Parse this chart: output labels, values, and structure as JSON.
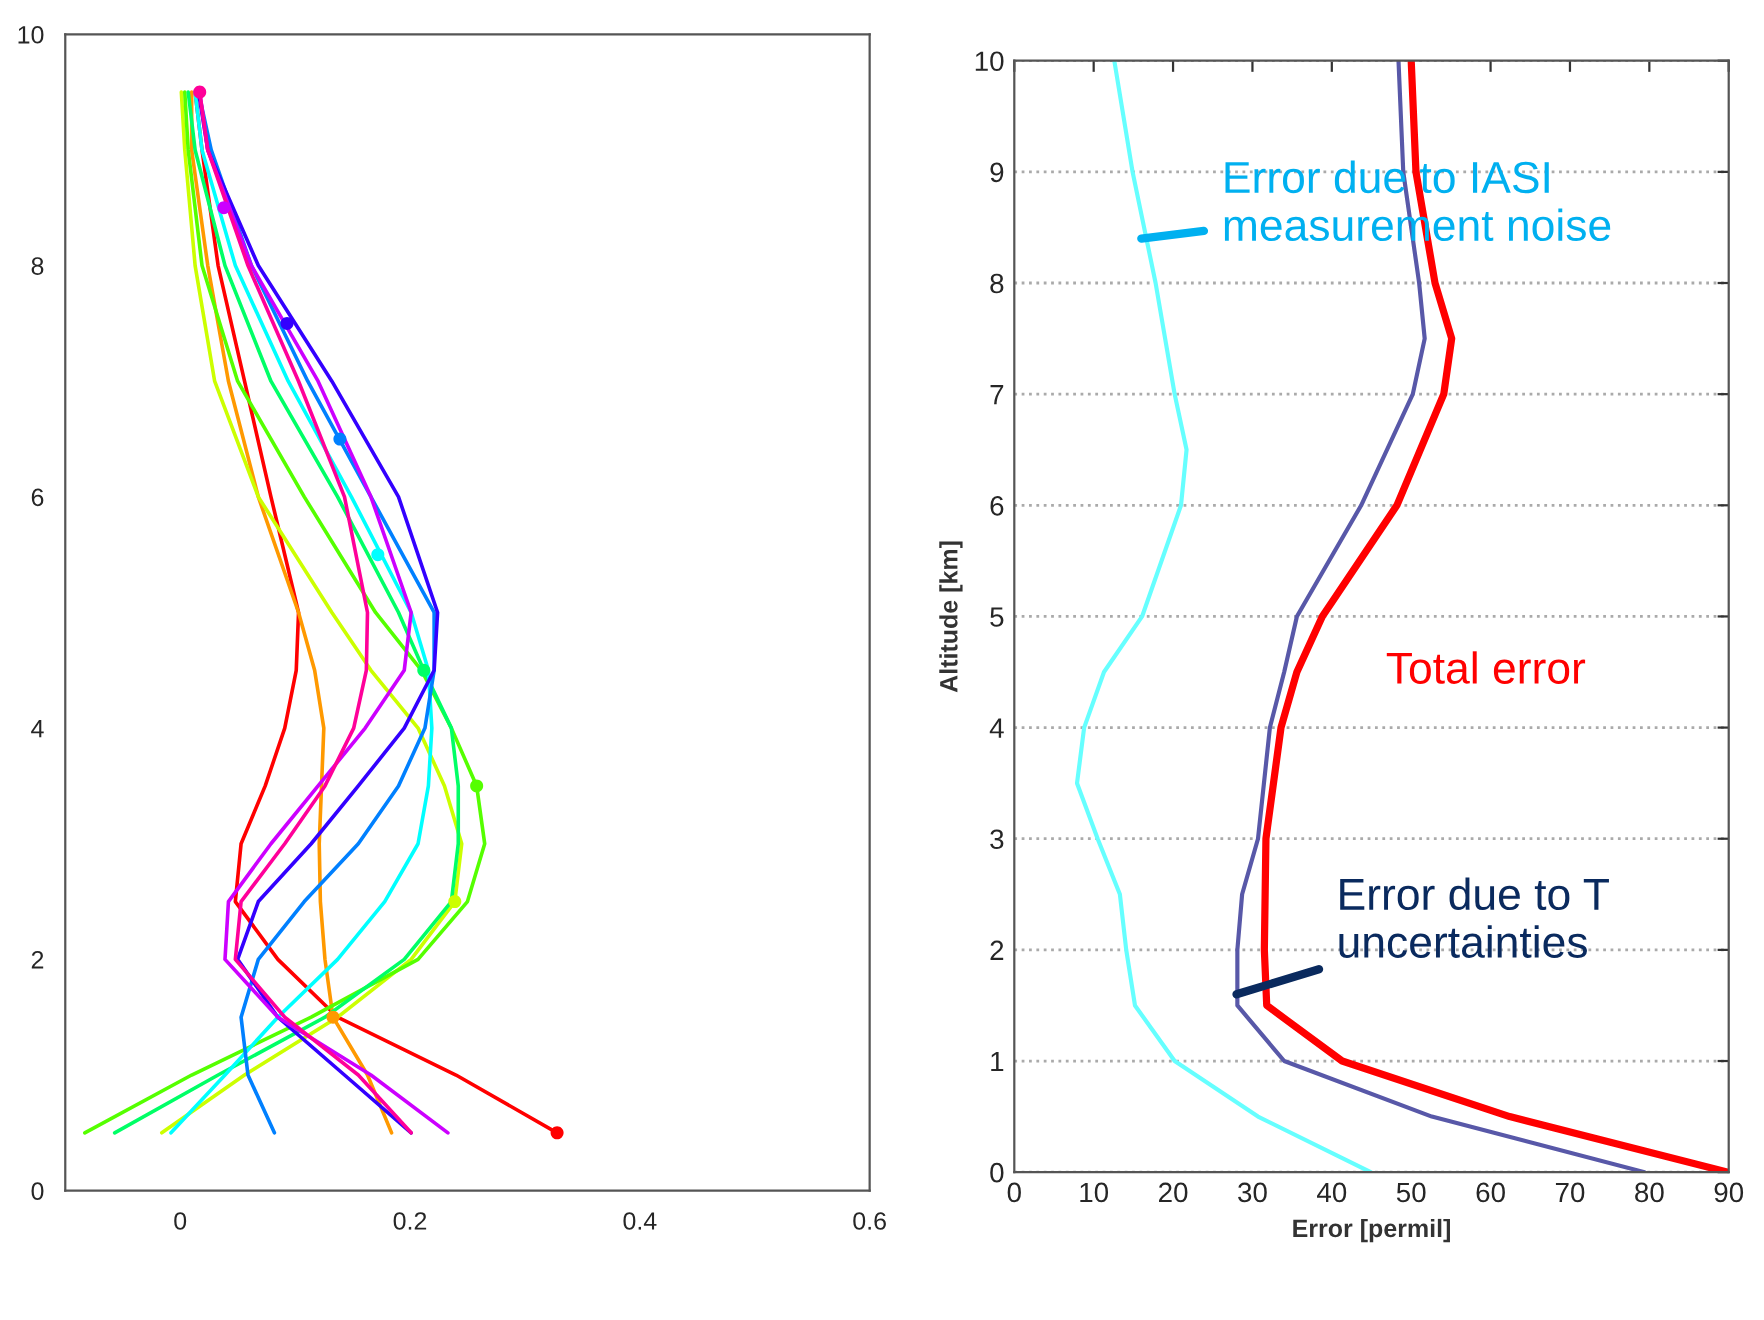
{
  "chart_data": [
    {
      "type": "line",
      "xlim": [
        -0.1,
        0.6
      ],
      "xticks": [
        0,
        0.2,
        0.4,
        0.6
      ],
      "ylim": [
        0,
        10
      ],
      "yticks": [
        0,
        2,
        4,
        6,
        8,
        10
      ],
      "grid": false,
      "marker": "none",
      "line_style": "solid",
      "series": [
        {
          "color": "#ff0000",
          "x": [
            0.328,
            0.24,
            0.137,
            0.085,
            0.048,
            0.053,
            0.074,
            0.091,
            0.101,
            0.103,
            0.079,
            0.056,
            0.033,
            0.019,
            0.013
          ],
          "values": [
            0.5,
            1,
            1.5,
            2,
            2.5,
            3,
            3.5,
            4,
            4.5,
            5,
            6,
            7,
            8,
            9,
            9.5
          ]
        },
        {
          "color": "#ff9900",
          "x": [
            0.184,
            0.163,
            0.133,
            0.126,
            0.122,
            0.121,
            0.123,
            0.125,
            0.117,
            0.103,
            0.068,
            0.042,
            0.024,
            0.01,
            0.01
          ],
          "values": [
            0.5,
            1,
            1.5,
            2,
            2.5,
            3,
            3.5,
            4,
            4.5,
            5,
            6,
            7,
            8,
            9,
            9.5
          ]
        },
        {
          "color": "#ccff00",
          "x": [
            -0.016,
            0.056,
            0.137,
            0.201,
            0.239,
            0.245,
            0.23,
            0.207,
            0.166,
            0.132,
            0.068,
            0.03,
            0.013,
            0.004,
            0.001
          ],
          "values": [
            0.5,
            1,
            1.5,
            2,
            2.5,
            3,
            3.5,
            4,
            4.5,
            5,
            6,
            7,
            8,
            9,
            9.5
          ]
        },
        {
          "color": "#55ff00",
          "x": [
            -0.083,
            0.01,
            0.114,
            0.207,
            0.25,
            0.265,
            0.258,
            0.236,
            0.21,
            0.17,
            0.108,
            0.05,
            0.019,
            0.007,
            0.004
          ],
          "values": [
            0.5,
            1,
            1.5,
            2,
            2.5,
            3,
            3.5,
            4,
            4.5,
            5,
            6,
            7,
            8,
            9,
            9.5
          ]
        },
        {
          "color": "#00ff66",
          "x": [
            -0.057,
            0.033,
            0.126,
            0.195,
            0.236,
            0.242,
            0.242,
            0.236,
            0.212,
            0.19,
            0.137,
            0.079,
            0.039,
            0.013,
            0.007
          ],
          "values": [
            0.5,
            1,
            1.5,
            2,
            2.5,
            3,
            3.5,
            4,
            4.5,
            5,
            6,
            7,
            8,
            9,
            9.5
          ]
        },
        {
          "color": "#00ffff",
          "x": [
            -0.008,
            0.039,
            0.085,
            0.137,
            0.178,
            0.207,
            0.216,
            0.219,
            0.216,
            0.201,
            0.149,
            0.094,
            0.048,
            0.019,
            0.013
          ],
          "values": [
            0.5,
            1,
            1.5,
            2,
            2.5,
            3,
            3.5,
            4,
            4.5,
            5,
            6,
            7,
            8,
            9,
            9.5
          ]
        },
        {
          "color": "#0080ff",
          "x": [
            0.082,
            0.059,
            0.053,
            0.068,
            0.108,
            0.155,
            0.19,
            0.213,
            0.221,
            0.221,
            0.166,
            0.111,
            0.062,
            0.027,
            0.016
          ],
          "values": [
            0.5,
            1,
            1.5,
            2,
            2.5,
            3,
            3.5,
            4,
            4.5,
            5,
            6,
            7,
            8,
            9,
            9.5
          ]
        },
        {
          "color": "#3300ff",
          "x": [
            0.201,
            0.143,
            0.085,
            0.05,
            0.068,
            0.114,
            0.155,
            0.195,
            0.221,
            0.224,
            0.19,
            0.132,
            0.068,
            0.024,
            0.016
          ],
          "values": [
            0.5,
            1,
            1.5,
            2,
            2.5,
            3,
            3.5,
            4,
            4.5,
            5,
            6,
            7,
            8,
            9,
            9.5
          ]
        },
        {
          "color": "#cc00ff",
          "x": [
            0.233,
            0.166,
            0.085,
            0.039,
            0.042,
            0.079,
            0.12,
            0.161,
            0.195,
            0.201,
            0.166,
            0.12,
            0.062,
            0.024,
            0.017
          ],
          "values": [
            0.5,
            1,
            1.5,
            2,
            2.5,
            3,
            3.5,
            4,
            4.5,
            5,
            6,
            7,
            8,
            9,
            9.5
          ]
        },
        {
          "color": "#ff0099",
          "x": [
            0.201,
            0.155,
            0.091,
            0.048,
            0.053,
            0.091,
            0.126,
            0.151,
            0.162,
            0.163,
            0.143,
            0.103,
            0.059,
            0.024,
            0.017
          ],
          "values": [
            0.5,
            1,
            1.5,
            2,
            2.5,
            3,
            3.5,
            4,
            4.5,
            5,
            6,
            7,
            8,
            9,
            9.5
          ]
        },
        {
          "type": "scatter",
          "marker": "circle",
          "colors": [
            "#ff0000",
            "#ff9900",
            "#ccff00",
            "#55ff00",
            "#00ff66",
            "#00ffff",
            "#0080ff",
            "#3300ff",
            "#cc00ff",
            "#ff0099"
          ],
          "x": [
            0.328,
            0.133,
            0.239,
            0.258,
            0.212,
            0.172,
            0.139,
            0.093,
            0.038,
            0.017
          ],
          "values": [
            0.5,
            1.5,
            2.5,
            3.5,
            4.5,
            5.5,
            6.5,
            7.5,
            8.5,
            9.5
          ]
        }
      ]
    },
    {
      "type": "line",
      "xlabel": "Error [permil]",
      "ylabel": "Altitude [km]",
      "xlim": [
        0,
        90
      ],
      "xticks": [
        0,
        10,
        20,
        30,
        40,
        50,
        60,
        70,
        80,
        90
      ],
      "ylim": [
        0,
        10
      ],
      "yticks": [
        0,
        1,
        2,
        3,
        4,
        5,
        6,
        7,
        8,
        9,
        10
      ],
      "grid": "y",
      "marker": "none",
      "line_style": "solid",
      "series": [
        {
          "color": "#66ffff",
          "x": [
            12.6,
            14.9,
            17.8,
            20.2,
            21.7,
            21,
            16.1,
            11.3,
            8.8,
            7.9,
            10.5,
            13.3,
            14.1,
            15.2,
            20.2,
            30.7,
            44.9
          ],
          "values": [
            10,
            9,
            8,
            7,
            6.5,
            6,
            5,
            4.5,
            4,
            3.5,
            3,
            2.5,
            2,
            1.5,
            1,
            0.5,
            0
          ]
        },
        {
          "color": "#5858a8",
          "x": [
            48.4,
            49,
            51,
            51.7,
            50.2,
            43.7,
            35.6,
            34,
            32.2,
            30.7,
            28.7,
            28.1,
            28.1,
            34,
            52.6,
            79.4
          ],
          "values": [
            10,
            9,
            8,
            7.5,
            7,
            6,
            5,
            4.5,
            4,
            3,
            2.5,
            2,
            1.5,
            1,
            0.5,
            0
          ]
        },
        {
          "color": "#ff0000",
          "x": [
            50,
            50.6,
            53,
            55.1,
            54.1,
            48.2,
            38.8,
            35.6,
            33.6,
            31.7,
            31.5,
            31.8,
            41.3,
            62.4,
            89.9
          ],
          "values": [
            10,
            9,
            8,
            7.5,
            7,
            6,
            5,
            4.5,
            4,
            3,
            2,
            1.5,
            1,
            0.5,
            0
          ]
        }
      ],
      "annotations": [
        {
          "text": "Error due to IASI\nmeasurement noise",
          "x": 16,
          "y": 8.4
        },
        "Total error",
        {
          "text": "Error due to T\nuncertainties",
          "x": 28,
          "y": 1.6
        }
      ]
    }
  ]
}
